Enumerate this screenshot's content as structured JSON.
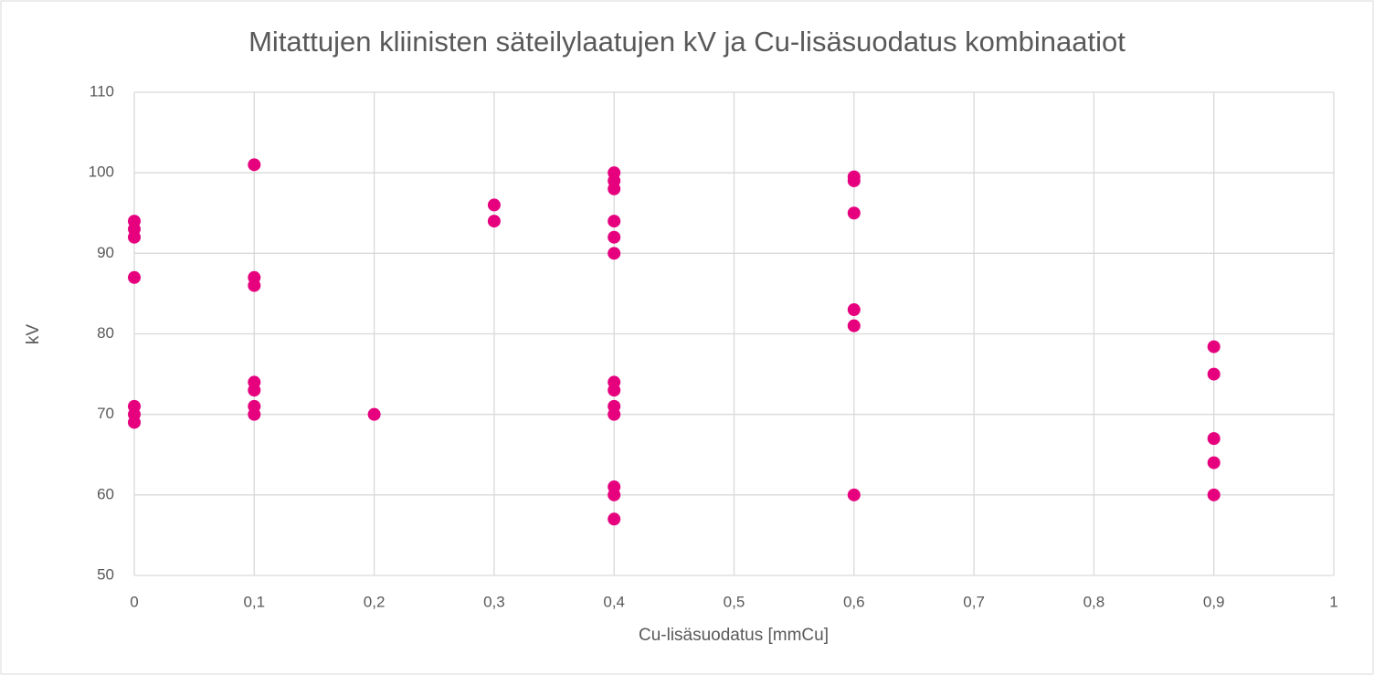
{
  "chart_data": {
    "type": "scatter",
    "title": "Mitattujen kliinisten säteilylaatujen kV ja Cu-lisäsuodatus kombinaatiot",
    "x_label": "Cu-lisäsuodatus [mmCu]",
    "y_label": "kV",
    "series": [
      {
        "color": "#e6007e",
        "x": [
          0,
          0,
          0,
          0,
          0,
          0,
          0,
          0.1,
          0.1,
          0.1,
          0.1,
          0.1,
          0.1,
          0.1,
          0.2,
          0.3,
          0.3,
          0.4,
          0.4,
          0.4,
          0.4,
          0.4,
          0.4,
          0.4,
          0.4,
          0.4,
          0.4,
          0.4,
          0.4,
          0.4,
          0.6,
          0.6,
          0.6,
          0.6,
          0.6,
          0.6,
          0.9,
          0.9,
          0.9,
          0.9,
          0.9
        ],
        "values": [
          94,
          93,
          92,
          87,
          71,
          70,
          69,
          101,
          87,
          86,
          74,
          73,
          71,
          70,
          70,
          96,
          94,
          100,
          99,
          98,
          94,
          92,
          90,
          74,
          73,
          71,
          70,
          61,
          60,
          57,
          99.5,
          99,
          95,
          83,
          81,
          60,
          78.4,
          75,
          67,
          64,
          60
        ]
      }
    ],
    "xlim": [
      0,
      1
    ],
    "xticks": [
      0,
      {
        "value": 0.1,
        "label": "0,1"
      },
      {
        "value": 0.2,
        "label": "0,2"
      },
      {
        "value": 0.3,
        "label": "0,3"
      },
      {
        "value": 0.4,
        "label": "0,4"
      },
      {
        "value": 0.5,
        "label": "0,5"
      },
      {
        "value": 0.6,
        "label": "0,6"
      },
      {
        "value": 0.7,
        "label": "0,7"
      },
      {
        "value": 0.8,
        "label": "0,8"
      },
      {
        "value": 0.9,
        "label": "0,9"
      },
      1
    ],
    "ylim": [
      50,
      110
    ],
    "yticks": [
      50,
      60,
      70,
      80,
      90,
      100,
      110
    ],
    "grid": true
  }
}
